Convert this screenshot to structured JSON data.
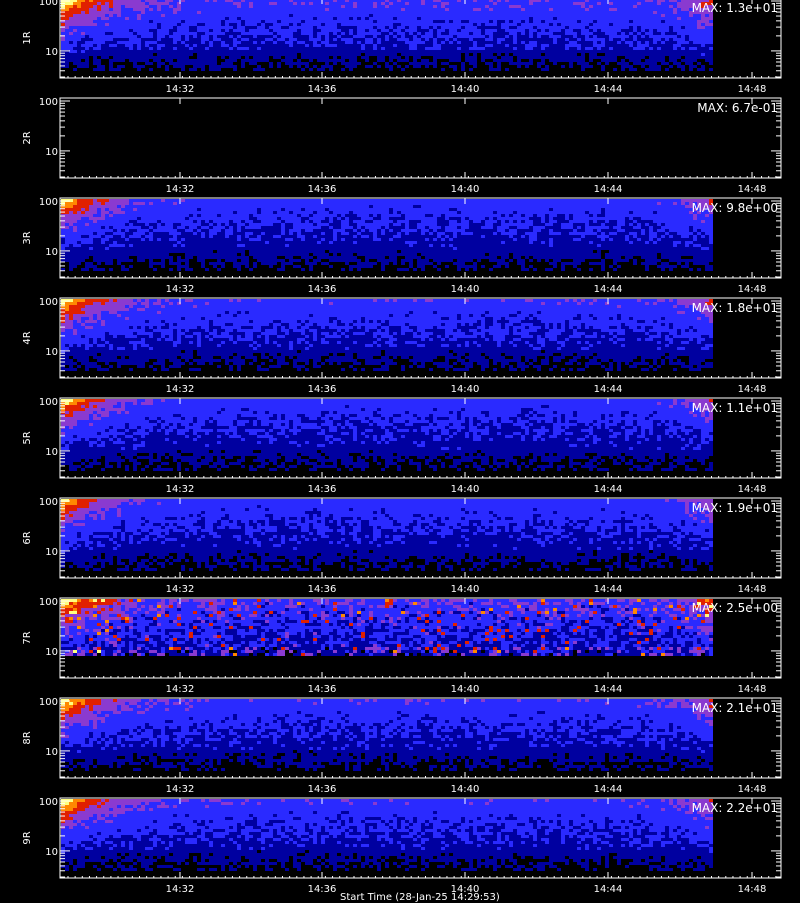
{
  "chart_data": {
    "type": "heatmap",
    "x_ticks": [
      "14:32",
      "14:36",
      "14:40",
      "14:44",
      "14:48"
    ],
    "y_ticks": [
      "100",
      "10"
    ],
    "y_scale": "log",
    "ylim": [
      3,
      100
    ],
    "colormap": [
      "#000000",
      "#0000a0",
      "#2a2aff",
      "#8a3ad0",
      "#e02000",
      "#ff8800",
      "#ffff80"
    ],
    "panels": [
      {
        "label": "1R",
        "max_label": "MAX: 1.3e+01",
        "data_end": "14:46:35",
        "empty": false,
        "intensity": 0.9
      },
      {
        "label": "2R",
        "max_label": "MAX: 6.7e-01",
        "data_end": "14:46:35",
        "empty": true,
        "intensity": 0.0
      },
      {
        "label": "3R",
        "max_label": "MAX: 9.8e+00",
        "data_end": "14:46:35",
        "empty": false,
        "intensity": 0.8
      },
      {
        "label": "4R",
        "max_label": "MAX: 1.8e+01",
        "data_end": "14:46:35",
        "empty": false,
        "intensity": 0.85
      },
      {
        "label": "5R",
        "max_label": "MAX: 1.1e+01",
        "data_end": "14:46:35",
        "empty": false,
        "intensity": 0.8
      },
      {
        "label": "6R",
        "max_label": "MAX: 1.9e+01",
        "data_end": "14:46:35",
        "empty": false,
        "intensity": 0.8
      },
      {
        "label": "7R",
        "max_label": "MAX: 2.5e+00",
        "data_end": "14:46:35",
        "empty": false,
        "intensity": 1.0,
        "noisy": true
      },
      {
        "label": "8R",
        "max_label": "MAX: 2.1e+01",
        "data_end": "14:46:35",
        "empty": false,
        "intensity": 0.85
      },
      {
        "label": "9R",
        "max_label": "MAX: 2.2e+01",
        "data_end": "14:46:35",
        "empty": false,
        "intensity": 0.85
      }
    ],
    "xlabel": "Start Time (28-Jan-25 14:29:53)"
  }
}
